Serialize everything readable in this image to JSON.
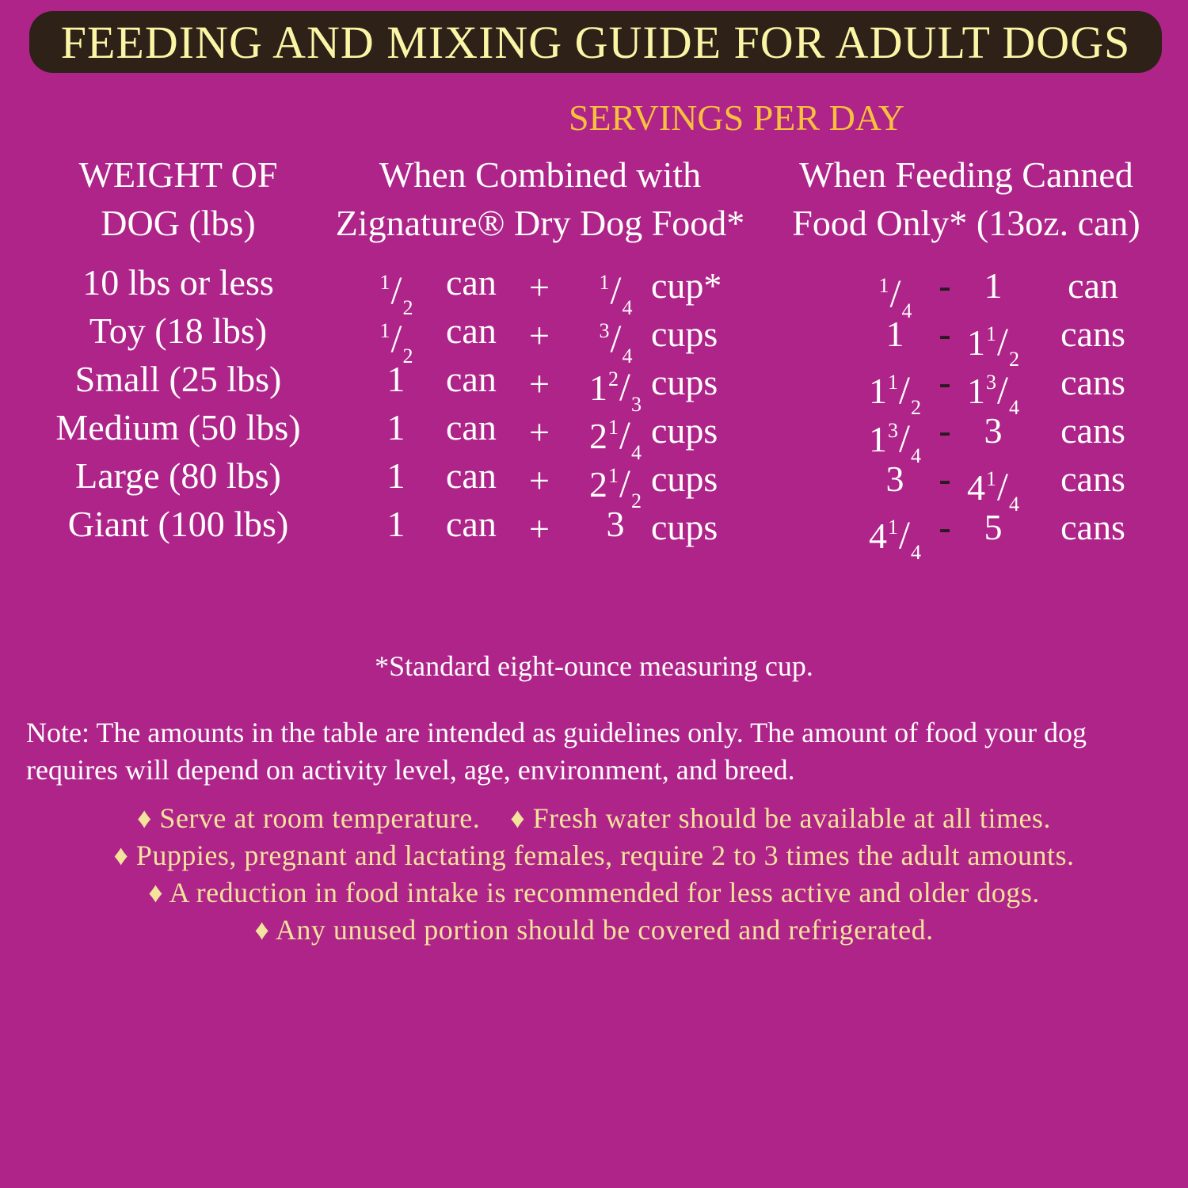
{
  "title": "FEEDING AND MIXING GUIDE FOR ADULT DOGS",
  "servings_header": "SERVINGS PER DAY",
  "columns": {
    "weight": [
      "WEIGHT OF",
      "DOG (lbs)"
    ],
    "combined": [
      "When Combined with",
      "Zignature® Dry Dog Food*"
    ],
    "canned": [
      "When Feeding Canned",
      "Food Only* (13oz. can)"
    ]
  },
  "rows": [
    {
      "weight": "10 lbs or less",
      "can_amt": {
        "w": "",
        "n": "1",
        "d": "2"
      },
      "can_unit": "can",
      "plus": "+",
      "cup_amt": {
        "w": "",
        "n": "1",
        "d": "4"
      },
      "cup_unit": "cup*",
      "min": {
        "w": "",
        "n": "1",
        "d": "4"
      },
      "dash": "-",
      "max": {
        "w": "1",
        "n": "",
        "d": ""
      },
      "unit": "can"
    },
    {
      "weight": "Toy (18 lbs)",
      "can_amt": {
        "w": "",
        "n": "1",
        "d": "2"
      },
      "can_unit": "can",
      "plus": "+",
      "cup_amt": {
        "w": "",
        "n": "3",
        "d": "4"
      },
      "cup_unit": "cups",
      "min": {
        "w": "1",
        "n": "",
        "d": ""
      },
      "dash": "-",
      "max": {
        "w": "1",
        "n": "1",
        "d": "2"
      },
      "unit": "cans"
    },
    {
      "weight": "Small (25 lbs)",
      "can_amt": {
        "w": "1",
        "n": "",
        "d": ""
      },
      "can_unit": "can",
      "plus": "+",
      "cup_amt": {
        "w": "1",
        "n": "2",
        "d": "3"
      },
      "cup_unit": "cups",
      "min": {
        "w": "1",
        "n": "1",
        "d": "2"
      },
      "dash": "-",
      "max": {
        "w": "1",
        "n": "3",
        "d": "4"
      },
      "unit": "cans"
    },
    {
      "weight": "Medium (50 lbs)",
      "can_amt": {
        "w": "1",
        "n": "",
        "d": ""
      },
      "can_unit": "can",
      "plus": "+",
      "cup_amt": {
        "w": "2",
        "n": "1",
        "d": "4"
      },
      "cup_unit": "cups",
      "min": {
        "w": "1",
        "n": "3",
        "d": "4"
      },
      "dash": "-",
      "max": {
        "w": "3",
        "n": "",
        "d": ""
      },
      "unit": "cans"
    },
    {
      "weight": "Large (80 lbs)",
      "can_amt": {
        "w": "1",
        "n": "",
        "d": ""
      },
      "can_unit": "can",
      "plus": "+",
      "cup_amt": {
        "w": "2",
        "n": "1",
        "d": "2"
      },
      "cup_unit": "cups",
      "min": {
        "w": "3",
        "n": "",
        "d": ""
      },
      "dash": "-",
      "max": {
        "w": "4",
        "n": "1",
        "d": "4"
      },
      "unit": "cans"
    },
    {
      "weight": "Giant (100 lbs)",
      "can_amt": {
        "w": "1",
        "n": "",
        "d": ""
      },
      "can_unit": "can",
      "plus": "+",
      "cup_amt": {
        "w": "3",
        "n": "",
        "d": ""
      },
      "cup_unit": "cups",
      "min": {
        "w": "4",
        "n": "1",
        "d": "4"
      },
      "dash": "-",
      "max": {
        "w": "5",
        "n": "",
        "d": ""
      },
      "unit": "cans"
    }
  ],
  "footnote": "*Standard eight-ounce measuring cup.",
  "note": [
    "Note: The amounts in the table are intended as guidelines only. The amount of food your dog",
    "requires will depend on activity level, age, environment, and breed."
  ],
  "bullets": [
    "♦ Serve at room temperature.    ♦ Fresh water should be available at all times.",
    "♦ Puppies, pregnant and lactating females, require 2 to 3 times the adult amounts.",
    "♦ A reduction in food intake is recommended for less active and older dogs.",
    "♦ Any unused portion should be covered and refrigerated."
  ],
  "colors": {
    "background": "#ae2489",
    "title_bar": "#2e2118",
    "title_text": "#fbf6a6",
    "servings_header": "#f7c13c",
    "bullet_text": "#f3e39c"
  }
}
